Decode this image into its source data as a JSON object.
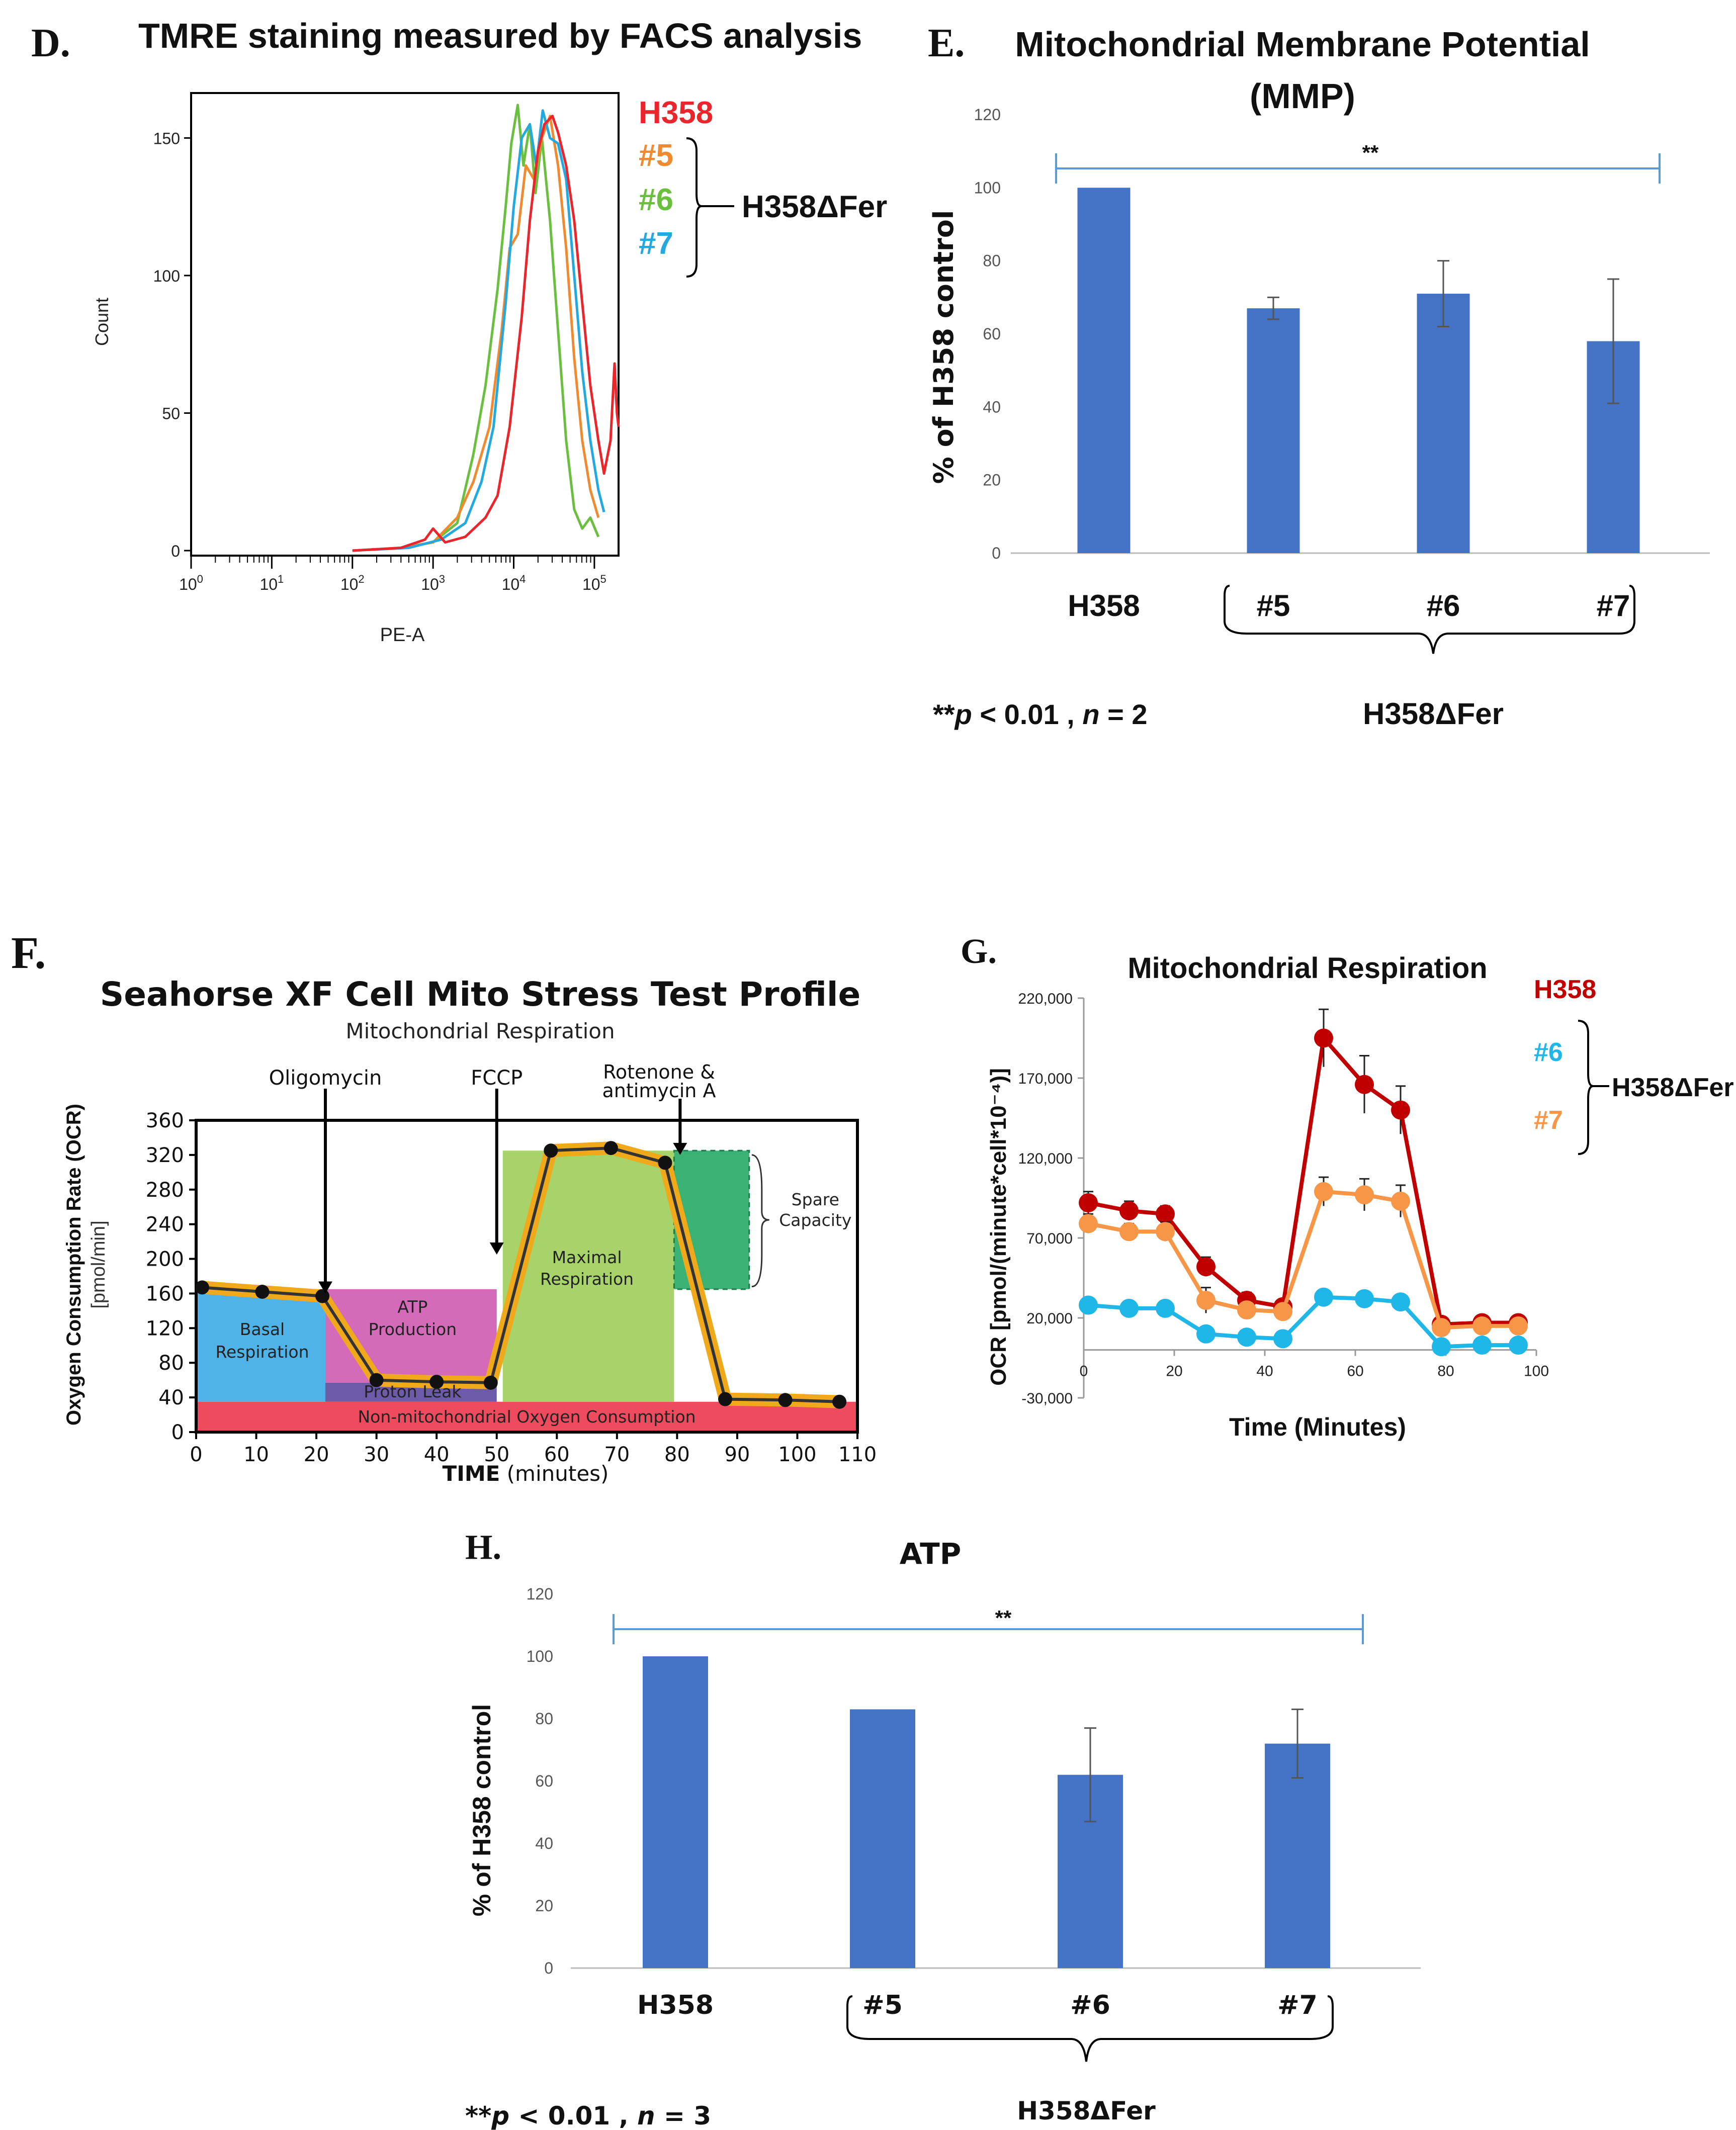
{
  "colors": {
    "bar": "#4472C4",
    "sig_line": "#5B9BD5",
    "h358_red": "#E8262B",
    "c5_orange": "#F08A30",
    "c6_green": "#6BBF3F",
    "c7_cyan": "#23A8E0",
    "g_red": "#C00000",
    "g_orange": "#F79646",
    "g_cyan": "#1FB6E8",
    "f_basal": "#4FB3E8",
    "f_atp": "#D46BB8",
    "f_proton": "#6B5BA8",
    "f_nonmito": "#EE4B5E",
    "f_max": "#A8D36A",
    "f_spare": "#3BB273",
    "f_trace": "#F0A91B"
  },
  "panels": {
    "D": {
      "letter": "D.",
      "title": "TMRE staining measured by FACS analysis",
      "legend": [
        {
          "label": "H358",
          "color": "#E8262B"
        },
        {
          "label": "#5",
          "color": "#F08A30"
        },
        {
          "label": "#6",
          "color": "#6BBF3F"
        },
        {
          "label": "#7",
          "color": "#23A8E0"
        }
      ],
      "group_label": "H358ΔFer"
    },
    "E": {
      "letter": "E.",
      "title_line1": "Mitochondrial Membrane Potential",
      "title_line2": "(MMP)",
      "sig": "**",
      "footnote_stars": "**",
      "footnote_p": "p",
      "footnote_mid": " < 0.01 , ",
      "footnote_n": "n",
      "footnote_end": " = 2",
      "group_label": "H358ΔFer"
    },
    "F": {
      "letter": "F.",
      "title": "Seahorse XF Cell Mito Stress Test Profile",
      "subtitle": "Mitochondrial Respiration",
      "ylabel1": "Oxygen Consumption Rate (OCR)",
      "ylabel2": "[pmol/min]",
      "xlabel_bold": "TIME",
      "xlabel_rest": " (minutes)",
      "annotations": {
        "oligomycin": "Oligomycin",
        "fccp": "FCCP",
        "rot1": "Rotenone &",
        "rot2": "antimycin A",
        "basal1": "Basal",
        "basal2": "Respiration",
        "atp1": "ATP",
        "atp2": "Production",
        "proton": "Proton Leak",
        "nonmito": "Non-mitochondrial Oxygen Consumption",
        "max1": "Maximal",
        "max2": "Respiration",
        "spare1": "Spare",
        "spare2": "Capacity"
      }
    },
    "G": {
      "letter": "G.",
      "group_label": "H358ΔFer"
    },
    "H": {
      "letter": "H.",
      "sig": "**",
      "footnote_stars": "**",
      "footnote_p": "p",
      "footnote_mid": " < 0.01 , ",
      "footnote_n": "n",
      "footnote_end": " = 3",
      "group_label": "H358ΔFer"
    }
  },
  "chart_data": [
    {
      "id": "D",
      "type": "line",
      "title": "TMRE staining measured by FACS analysis",
      "xlabel": "PE-A",
      "ylabel": "Count",
      "x_scale": "log",
      "xlim": [
        0,
        5.3
      ],
      "ylim": [
        0,
        170
      ],
      "x_tick_labels": [
        "10^0",
        "10^1",
        "10^2",
        "10^3",
        "10^4",
        "10^5"
      ],
      "x_tick_values": [
        0,
        1,
        2,
        3,
        4,
        5
      ],
      "y_ticks": [
        0,
        50,
        100,
        150
      ],
      "series": [
        {
          "name": "#6",
          "color": "#6BBF3F",
          "x": [
            2.0,
            2.6,
            3.0,
            3.3,
            3.5,
            3.65,
            3.8,
            3.9,
            3.97,
            4.05,
            4.12,
            4.2,
            4.27,
            4.35,
            4.45,
            4.55,
            4.65,
            4.75,
            4.85,
            4.95,
            5.05
          ],
          "y": [
            0,
            1,
            3,
            10,
            35,
            60,
            95,
            125,
            148,
            162,
            140,
            155,
            130,
            150,
            120,
            80,
            40,
            15,
            8,
            12,
            5
          ]
        },
        {
          "name": "#5",
          "color": "#F08A30",
          "x": [
            2.0,
            2.6,
            3.0,
            3.3,
            3.5,
            3.7,
            3.85,
            3.95,
            4.05,
            4.15,
            4.25,
            4.35,
            4.45,
            4.55,
            4.65,
            4.75,
            4.85,
            4.95,
            5.05
          ],
          "y": [
            0,
            1,
            3,
            12,
            25,
            45,
            80,
            110,
            115,
            140,
            135,
            150,
            158,
            140,
            110,
            70,
            40,
            22,
            12
          ]
        },
        {
          "name": "#7",
          "color": "#23A8E0",
          "x": [
            2.0,
            2.7,
            3.1,
            3.4,
            3.6,
            3.75,
            3.9,
            4.0,
            4.1,
            4.2,
            4.28,
            4.36,
            4.45,
            4.55,
            4.65,
            4.75,
            4.85,
            4.95,
            5.05,
            5.12
          ],
          "y": [
            0,
            1,
            4,
            10,
            25,
            45,
            90,
            125,
            150,
            155,
            140,
            160,
            150,
            148,
            135,
            100,
            65,
            40,
            22,
            14
          ]
        },
        {
          "name": "H358",
          "color": "#E8262B",
          "x": [
            2.0,
            2.6,
            2.9,
            3.0,
            3.15,
            3.4,
            3.65,
            3.8,
            3.95,
            4.1,
            4.2,
            4.3,
            4.38,
            4.48,
            4.55,
            4.65,
            4.75,
            4.85,
            4.95,
            5.05,
            5.12,
            5.2,
            5.25,
            5.28,
            5.3
          ],
          "y": [
            0,
            1,
            4,
            8,
            3,
            5,
            12,
            20,
            45,
            85,
            120,
            145,
            155,
            158,
            152,
            140,
            120,
            90,
            60,
            40,
            28,
            40,
            68,
            50,
            45
          ]
        }
      ]
    },
    {
      "id": "E",
      "type": "bar",
      "title": "Mitochondrial Membrane Potential (MMP)",
      "ylabel": "% of H358 control",
      "categories": [
        "H358",
        "#5",
        "#6",
        "#7"
      ],
      "values": [
        100,
        67,
        71,
        58
      ],
      "errors": [
        0,
        3,
        9,
        17
      ],
      "ylim": [
        0,
        120
      ],
      "y_ticks": [
        0,
        20,
        40,
        60,
        80,
        100,
        120
      ]
    },
    {
      "id": "F",
      "type": "line",
      "title": "Seahorse XF Cell Mito Stress Test Profile",
      "xlabel": "TIME (minutes)",
      "ylabel": "Oxygen Consumption Rate (OCR) [pmol/min]",
      "xlim": [
        0,
        110
      ],
      "ylim": [
        0,
        360
      ],
      "x_ticks": [
        0,
        10,
        20,
        30,
        40,
        50,
        60,
        70,
        80,
        90,
        100,
        110
      ],
      "y_ticks": [
        0,
        40,
        80,
        120,
        160,
        200,
        240,
        280,
        320,
        360
      ],
      "x": [
        1,
        11,
        21,
        30,
        40,
        49,
        59,
        69,
        78,
        88,
        98,
        107
      ],
      "values": [
        167,
        162,
        157,
        60,
        58,
        57,
        325,
        328,
        311,
        38,
        37,
        35
      ]
    },
    {
      "id": "G",
      "type": "line",
      "title": "Mitochondrial Respiration",
      "xlabel": "Time (Minutes)",
      "ylabel": "OCR [pmol/(minute*cell*10⁻⁴)]",
      "xlim": [
        0,
        100
      ],
      "ylim": [
        -30000,
        220000
      ],
      "x_ticks": [
        0,
        20,
        40,
        60,
        80,
        100
      ],
      "y_ticks": [
        -30000,
        20000,
        70000,
        120000,
        170000,
        220000
      ],
      "y_tick_labels": [
        "-30,000",
        "20,000",
        "70,000",
        "120,000",
        "170,000",
        "220,000"
      ],
      "x": [
        1,
        10,
        18,
        27,
        36,
        44,
        53,
        62,
        70,
        79,
        88,
        96
      ],
      "series": [
        {
          "name": "H358",
          "color": "#C00000",
          "values": [
            92000,
            87000,
            85000,
            52000,
            31000,
            27000,
            195000,
            166000,
            150000,
            16000,
            17000,
            17000
          ],
          "errors": [
            7000,
            6000,
            5000,
            6000,
            5000,
            4000,
            18000,
            18000,
            15000,
            3000,
            3000,
            3000
          ]
        },
        {
          "name": "#6",
          "color": "#1FB6E8",
          "values": [
            28000,
            26000,
            26000,
            10000,
            8000,
            7000,
            33000,
            32000,
            30000,
            2000,
            3000,
            3000
          ],
          "errors": [
            3000,
            3000,
            3000,
            3000,
            3000,
            3000,
            4000,
            4000,
            3000,
            2000,
            2000,
            2000
          ]
        },
        {
          "name": "#7",
          "color": "#F79646",
          "values": [
            79000,
            74000,
            74000,
            31000,
            25000,
            24000,
            99000,
            97000,
            93000,
            14000,
            15000,
            15000
          ],
          "errors": [
            6000,
            5000,
            6000,
            8000,
            5000,
            5000,
            9000,
            10000,
            10000,
            3000,
            3000,
            3000
          ]
        }
      ]
    },
    {
      "id": "H",
      "type": "bar",
      "title": "ATP",
      "ylabel": "% of H358 control",
      "categories": [
        "H358",
        "#5",
        "#6",
        "#7"
      ],
      "values": [
        100,
        83,
        62,
        72
      ],
      "errors": [
        0,
        0,
        15,
        11
      ],
      "ylim": [
        0,
        120
      ],
      "y_ticks": [
        0,
        20,
        40,
        60,
        80,
        100,
        120
      ]
    }
  ]
}
